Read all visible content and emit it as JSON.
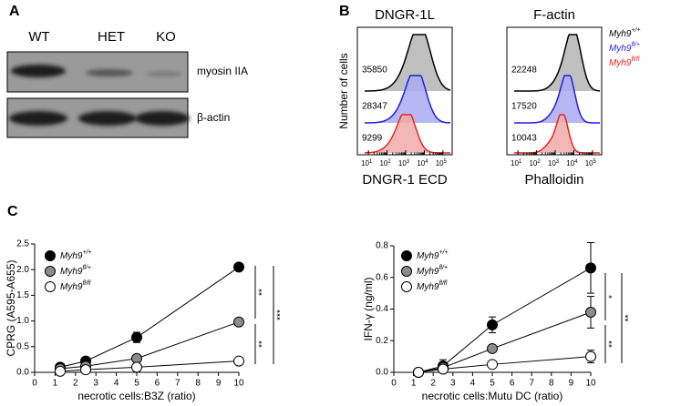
{
  "panel_a": {
    "label": "A",
    "lanes": [
      "WT",
      "HET",
      "KO"
    ],
    "rows": [
      "myosin IIA",
      "β-actin"
    ]
  },
  "panel_b": {
    "label": "B",
    "y_label": "Number of cells",
    "tick_base": "10",
    "tick_exponents": [
      "1",
      "2",
      "3",
      "4",
      "5"
    ],
    "legend": [
      {
        "name": "Myh9",
        "sup": "+/+",
        "color": "#000000"
      },
      {
        "name": "Myh9",
        "sup": "fl/+",
        "color": "#1f1fe6"
      },
      {
        "name": "Myh9",
        "sup": "fl/fl",
        "color": "#e3261d"
      }
    ],
    "plots": [
      {
        "title": "DNGR-1L",
        "x_label": "DNGR-1 ECD",
        "mfi": [
          35850,
          28347,
          9299
        ]
      },
      {
        "title": "F-actin",
        "x_label": "Phalloidin",
        "mfi": [
          22248,
          17520,
          10043
        ]
      }
    ]
  },
  "panel_c_label": "C",
  "chart_data": [
    {
      "type": "line",
      "y_label": "CPRG (A595-A655)",
      "x_label": "necrotic cells:B3Z (ratio)",
      "x": [
        1.25,
        2.5,
        5,
        10
      ],
      "xlim": [
        0,
        10
      ],
      "xticks": [
        0,
        1,
        2,
        3,
        4,
        5,
        6,
        7,
        8,
        9,
        10
      ],
      "ylim": [
        0,
        2.5
      ],
      "yticks": [
        {
          "value": 0,
          "label": "0.0"
        },
        0.5,
        {
          "value": 1,
          "label": "1.0"
        },
        1.5,
        {
          "value": 2,
          "label": "2.0"
        },
        2.5
      ],
      "series": [
        {
          "name": "Myh9",
          "sup": "+/+",
          "color": "#000000",
          "values": [
            0.1,
            0.22,
            0.68,
            2.05
          ],
          "errors": [
            null,
            null,
            0.1,
            null
          ]
        },
        {
          "name": "Myh9",
          "sup": "fl/+",
          "color": "#8c8c8c",
          "values": [
            0.07,
            0.12,
            0.27,
            0.98
          ],
          "errors": [
            null,
            null,
            null,
            null
          ]
        },
        {
          "name": "Myh9",
          "sup": "fl/fl",
          "color": "#ffffff",
          "values": [
            0.02,
            0.05,
            0.1,
            0.22
          ],
          "errors": [
            null,
            null,
            null,
            null
          ]
        }
      ],
      "annotations": [
        "**",
        "**",
        "***"
      ]
    },
    {
      "type": "line",
      "y_label": "IFN-γ (ng/ml)",
      "x_label": "necrotic cells:Mutu DC (ratio)",
      "x": [
        1.25,
        2.5,
        5,
        10
      ],
      "xlim": [
        0,
        10
      ],
      "xticks": [
        0,
        1,
        2,
        3,
        4,
        5,
        6,
        7,
        8,
        9,
        10
      ],
      "ylim": [
        0,
        0.8
      ],
      "yticks": [
        {
          "value": 0,
          "label": "0.0"
        },
        0.2,
        0.4,
        0.6,
        0.8
      ],
      "series": [
        {
          "name": "Myh9",
          "sup": "+/+",
          "color": "#000000",
          "values": [
            0,
            0.04,
            0.3,
            0.66
          ],
          "errors": [
            null,
            0.04,
            0.05,
            0.16
          ]
        },
        {
          "name": "Myh9",
          "sup": "fl/+",
          "color": "#8c8c8c",
          "values": [
            0,
            0.03,
            0.15,
            0.38
          ],
          "errors": [
            null,
            null,
            null,
            0.1
          ]
        },
        {
          "name": "Myh9",
          "sup": "fl/fl",
          "color": "#ffffff",
          "values": [
            0,
            0.02,
            0.05,
            0.1
          ],
          "errors": [
            null,
            null,
            null,
            0.04
          ]
        }
      ],
      "annotations": [
        "*",
        "**",
        "**"
      ]
    }
  ]
}
